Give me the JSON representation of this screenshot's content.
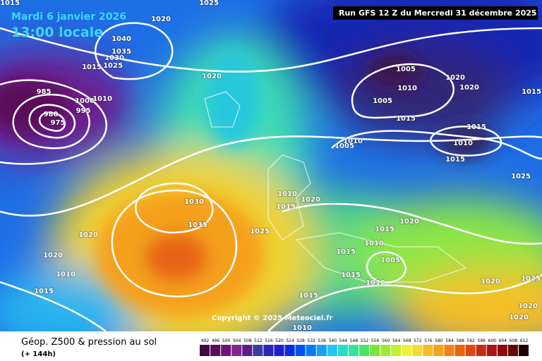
{
  "header": {
    "date": "Mardi 6 janvier 2026",
    "time": "13:00 locale",
    "run": "Run GFS 12 Z du Mercredi 31 décembre 2025"
  },
  "copyright": "Copyright © 2025 Meteociel.fr",
  "footer": {
    "title": "Géop. Z500 & pression au sol",
    "lead": "(+ 144h)"
  },
  "isobar_labels": [
    "1015",
    "1025",
    "1020",
    "1040",
    "1035",
    "1030",
    "1015",
    "1025",
    "1020",
    "985",
    "1000",
    "1010",
    "995",
    "980",
    "975",
    "1005",
    "1020",
    "1010",
    "1020",
    "1005",
    "1015",
    "1015",
    "1015",
    "1010",
    "1005",
    "1010",
    "1015",
    "1025",
    "1010",
    "1020",
    "1015",
    "1030",
    "1020",
    "1015",
    "1035",
    "1025",
    "1020",
    "1010",
    "1015",
    "1020",
    "1005",
    "1010",
    "1015",
    "1010",
    "1020",
    "1025",
    "1015",
    "1015",
    "1020",
    "1020",
    "1010"
  ],
  "legend": {
    "values": [
      492,
      496,
      500,
      504,
      508,
      512,
      516,
      520,
      524,
      528,
      532,
      536,
      540,
      544,
      548,
      552,
      556,
      560,
      564,
      568,
      572,
      576,
      580,
      584,
      588,
      592,
      596,
      600,
      604,
      608,
      612
    ],
    "colors": [
      "#3c0a3c",
      "#5a0a5a",
      "#6e1478",
      "#82288c",
      "#5a1e8c",
      "#3c3c9c",
      "#2828b4",
      "#1e1ecd",
      "#0a2ae6",
      "#0050f0",
      "#0a78f5",
      "#14a0f5",
      "#1ec8f0",
      "#28dcc8",
      "#32e696",
      "#46e664",
      "#78e63c",
      "#a0eb32",
      "#c8f032",
      "#f0f03c",
      "#f5dc32",
      "#f5be28",
      "#f5a01e",
      "#f08214",
      "#e6640a",
      "#dc4614",
      "#c82814",
      "#aa1414",
      "#8c0a0a",
      "#640505",
      "#1e0000"
    ]
  }
}
